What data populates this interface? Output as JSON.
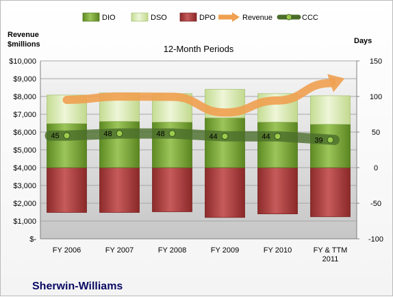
{
  "chart_data": {
    "type": "bar",
    "title": "12-Month Periods",
    "company": "Sherwin-Williams",
    "y_left_label": [
      "Revenue",
      "$millions"
    ],
    "y_right_label": "Days",
    "categories": [
      "FY 2006",
      "FY 2007",
      "FY 2008",
      "FY 2009",
      "FY 2010",
      "FY & TTM 2011"
    ],
    "category_lines": [
      [
        "FY 2006"
      ],
      [
        "FY 2007"
      ],
      [
        "FY 2008"
      ],
      [
        "FY 2009"
      ],
      [
        "FY 2010"
      ],
      [
        "FY & TTM",
        "2011"
      ]
    ],
    "left_axis": {
      "min": 0,
      "max": 10000,
      "step": 1000,
      "tick_labels": [
        "$-",
        "$1,000",
        "$2,000",
        "$3,000",
        "$4,000",
        "$5,000",
        "$6,000",
        "$7,000",
        "$8,000",
        "$9,000",
        "$10,000"
      ]
    },
    "right_axis": {
      "min": -100,
      "max": 150,
      "step": 50,
      "tick_labels": [
        "-100",
        "-50",
        "0",
        "50",
        "100",
        "150"
      ]
    },
    "grid": true,
    "legend_position": "top",
    "series": [
      {
        "name": "DIO",
        "axis": "right",
        "kind": "stacked-bar",
        "color": "#7aa53a",
        "values": [
          62,
          65,
          64,
          70,
          64,
          61
        ]
      },
      {
        "name": "DSO",
        "axis": "right",
        "kind": "stacked-bar",
        "color": "#d7e8b0",
        "values": [
          40,
          40,
          40,
          40,
          40,
          40
        ]
      },
      {
        "name": "DPO",
        "axis": "right",
        "kind": "negative-bar",
        "color": "#a83b3b",
        "values": [
          -63,
          -63,
          -62,
          -70,
          -65,
          -69
        ]
      },
      {
        "name": "Revenue",
        "axis": "left",
        "kind": "arrow-line",
        "color": "#f0a050",
        "values": [
          7810,
          7996,
          7980,
          7094,
          7776,
          8750
        ]
      },
      {
        "name": "CCC",
        "axis": "right",
        "kind": "line",
        "color": "#4b6e2b",
        "values": [
          45,
          48,
          48,
          44,
          44,
          39
        ],
        "data_labels": [
          "45",
          "48",
          "48",
          "44",
          "44",
          "39"
        ]
      }
    ]
  }
}
